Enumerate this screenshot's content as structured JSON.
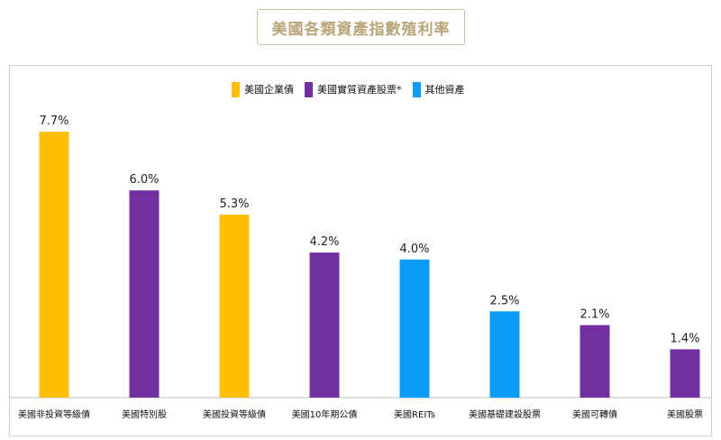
{
  "header": {
    "title": "美國各類資產指數殖利率"
  },
  "chart_data": {
    "type": "bar",
    "categories": [
      "美國非投資等級債",
      "美國特別股",
      "美國投資等級債",
      "美國10年期公債",
      "美國REITs",
      "美國基礎建設股票",
      "美國可轉債",
      "美國股票"
    ],
    "values": [
      7.7,
      6.0,
      5.3,
      4.2,
      4.0,
      2.5,
      2.1,
      1.4
    ],
    "value_labels": [
      "7.7%",
      "6.0%",
      "5.3%",
      "4.2%",
      "4.0%",
      "2.5%",
      "2.1%",
      "1.4%"
    ],
    "groups": [
      0,
      1,
      0,
      1,
      2,
      2,
      1,
      1
    ],
    "legend": [
      {
        "name": "美國企業債",
        "color": "#ffbf00"
      },
      {
        "name": "美國實質資產股票*",
        "color": "#7030a0"
      },
      {
        "name": "其他資產",
        "color": "#0b9cf7"
      }
    ],
    "ylim": [
      0,
      8
    ],
    "legend_position": "top-center",
    "grid": false
  }
}
